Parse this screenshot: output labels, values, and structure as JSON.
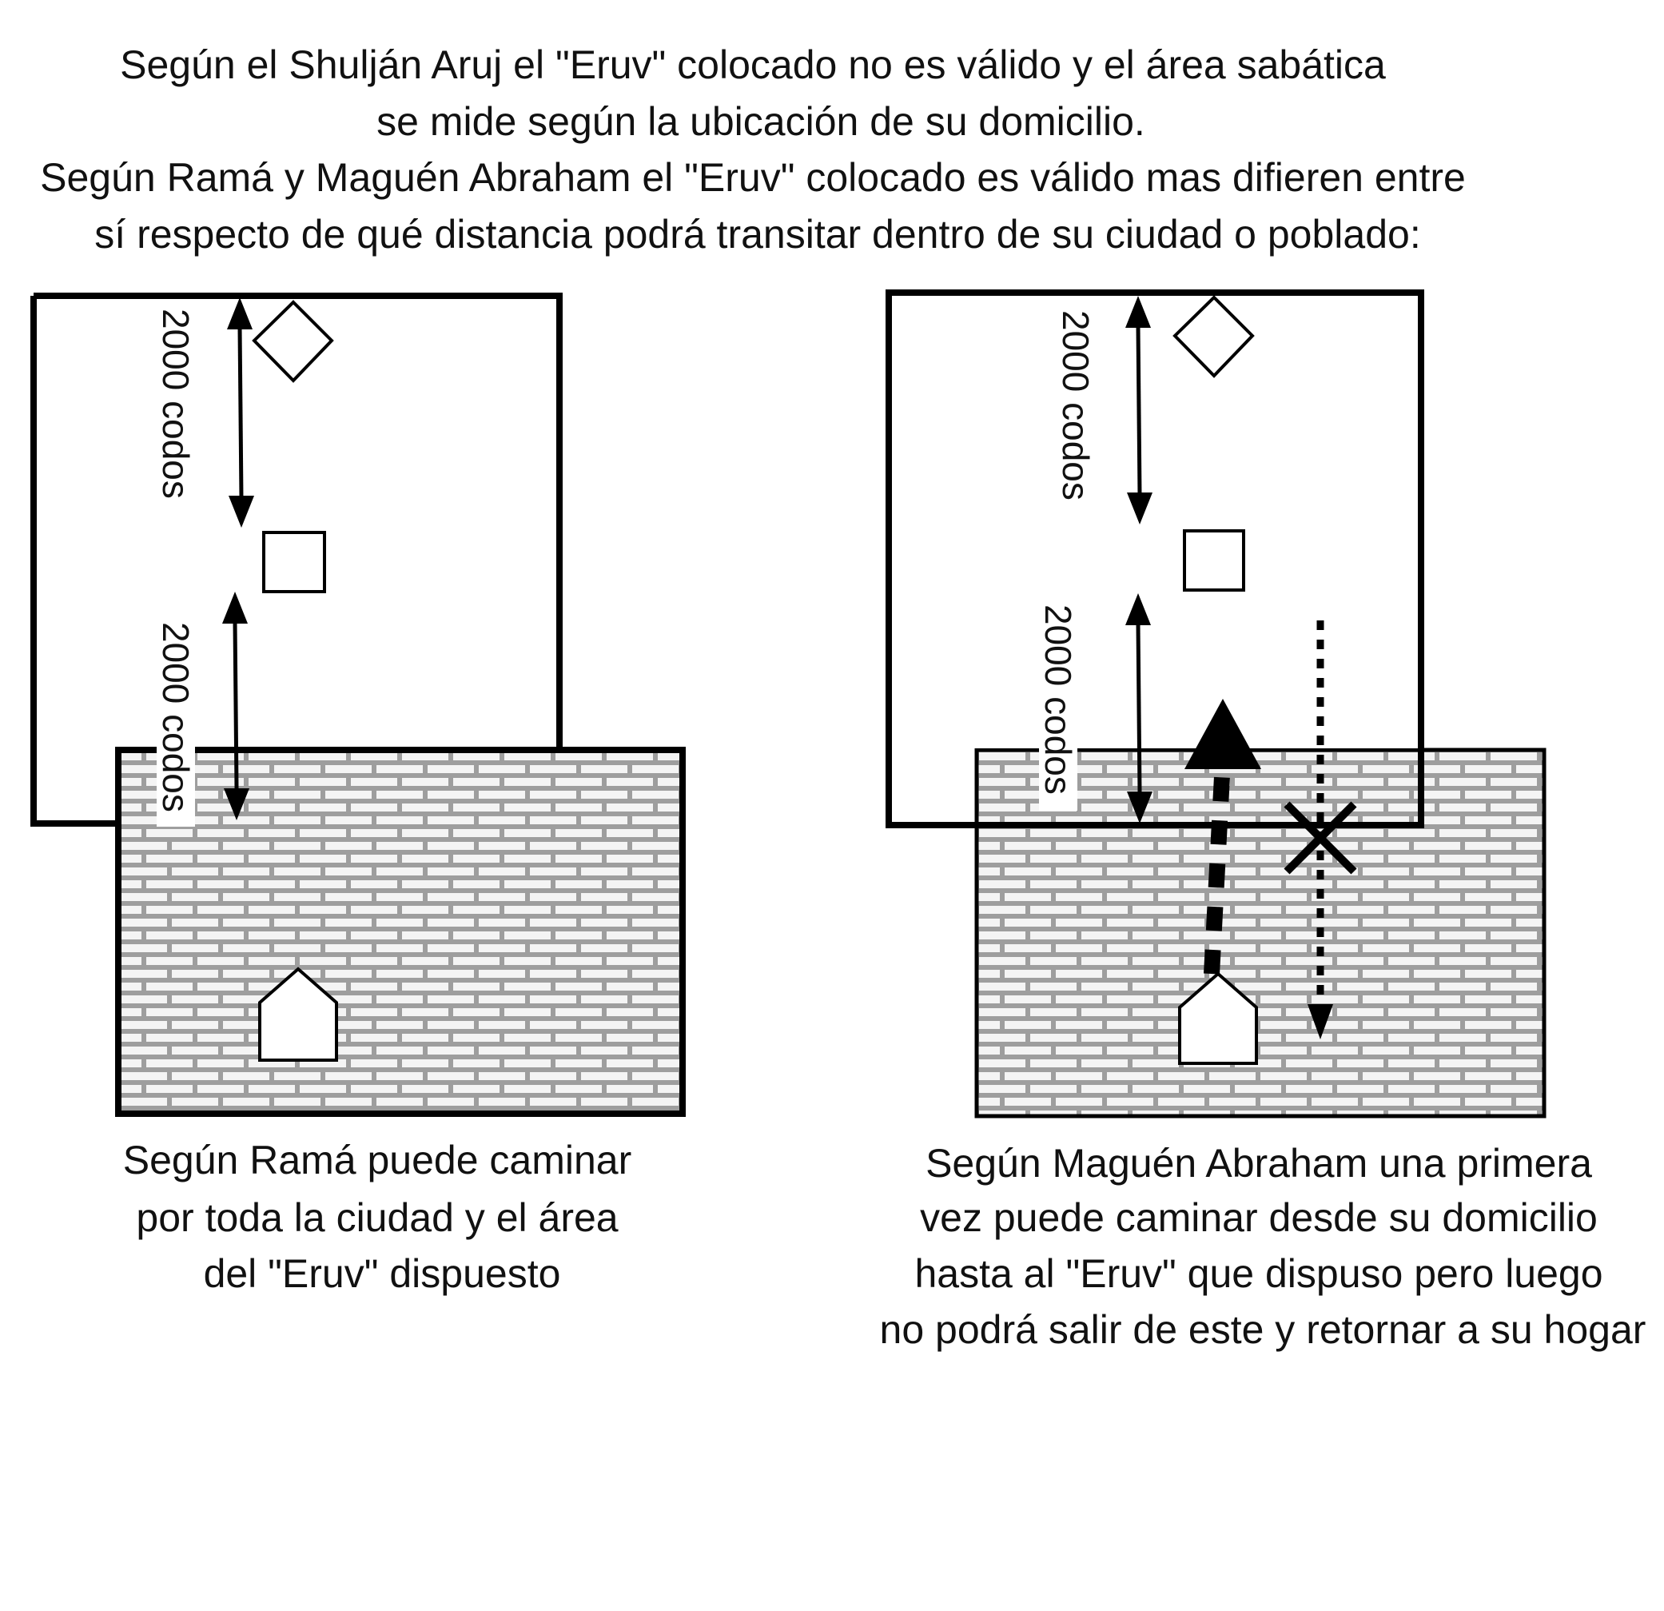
{
  "heading": {
    "lines": [
      "Según el Shulján Aruj el \"Eruv\" colocado no es válido y el área sabática",
      "se mide según la ubicación de su domicilio.",
      "Según Ramá y Maguén Abraham el \"Eruv\" colocado es válido mas difieren entre",
      "sí respecto de qué distancia podrá transitar dentro de su ciudad o poblado:"
    ]
  },
  "left_panel": {
    "dimension_upper": "2000 codos",
    "dimension_lower": "2000 codos",
    "caption_lines": [
      "Según Ramá puede caminar",
      "por toda la ciudad y el área",
      "del \"Eruv\" dispuesto"
    ]
  },
  "right_panel": {
    "dimension_upper": "2000 codos",
    "dimension_lower": "2000 codos",
    "caption_lines": [
      "Según Maguén Abraham una primera",
      "vez puede caminar desde su domicilio",
      "hasta al \"Eruv\" que dispuso pero luego",
      "no podrá salir de este y retornar a su hogar"
    ]
  },
  "icons": {
    "eruv_marker": "diamond-icon",
    "eruv_center": "square-icon",
    "home": "house-icon",
    "forbidden": "x-mark-icon"
  },
  "colors": {
    "ink": "#000000",
    "brick_fill": "#f0f0f0",
    "brick_mortar": "#bdbdbd"
  }
}
